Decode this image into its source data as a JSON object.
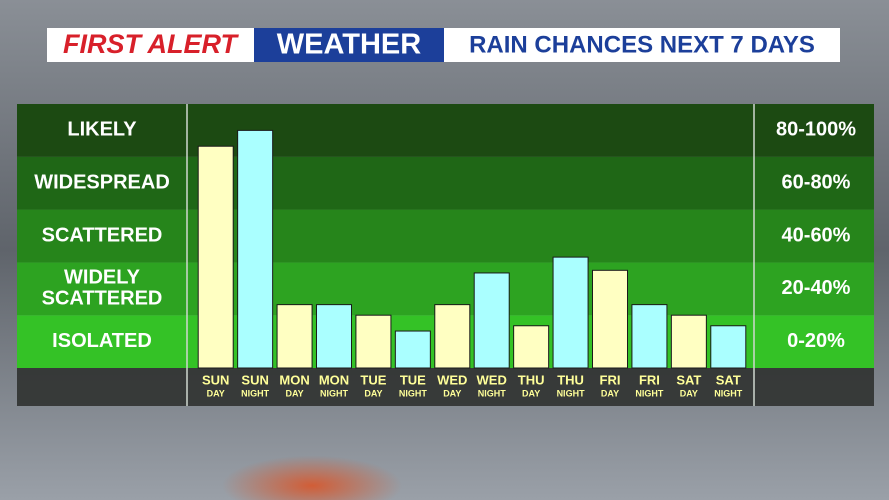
{
  "chart_data": {
    "type": "bar",
    "title": {
      "brand_1": "FIRST ALERT",
      "brand_2": "WEATHER",
      "text": "RAIN CHANCES NEXT 7 DAYS"
    },
    "categories": [
      "SUN",
      "SUN",
      "MON",
      "MON",
      "TUE",
      "TUE",
      "WED",
      "WED",
      "THU",
      "THU",
      "FRI",
      "FRI",
      "SAT",
      "SAT"
    ],
    "subcategories": [
      "DAY",
      "NIGHT",
      "DAY",
      "NIGHT",
      "DAY",
      "NIGHT",
      "DAY",
      "NIGHT",
      "DAY",
      "NIGHT",
      "DAY",
      "NIGHT",
      "DAY",
      "NIGHT"
    ],
    "values": [
      84,
      90,
      24,
      24,
      20,
      14,
      24,
      36,
      16,
      42,
      37,
      24,
      20,
      16
    ],
    "colors": [
      "#ffffc2",
      "#aaffff",
      "#ffffc2",
      "#aaffff",
      "#ffffc2",
      "#aaffff",
      "#ffffc2",
      "#aaffff",
      "#ffffc2",
      "#aaffff",
      "#ffffc2",
      "#aaffff",
      "#ffffc2",
      "#aaffff"
    ],
    "ylim": [
      0,
      100
    ],
    "bands": [
      {
        "label": [
          "LIKELY"
        ],
        "range": "80-100%",
        "from": 80,
        "to": 100,
        "color": "#1c4a12"
      },
      {
        "label": [
          "WIDESPREAD"
        ],
        "range": "60-80%",
        "from": 60,
        "to": 80,
        "color": "#1f6716"
      },
      {
        "label": [
          "SCATTERED"
        ],
        "range": "40-60%",
        "from": 40,
        "to": 60,
        "color": "#26851b"
      },
      {
        "label": [
          "WIDELY",
          "SCATTERED"
        ],
        "range": "20-40%",
        "from": 20,
        "to": 40,
        "color": "#2da321"
      },
      {
        "label": [
          "ISOLATED"
        ],
        "range": "0-20%",
        "from": 0,
        "to": 20,
        "color": "#34c226"
      }
    ]
  }
}
